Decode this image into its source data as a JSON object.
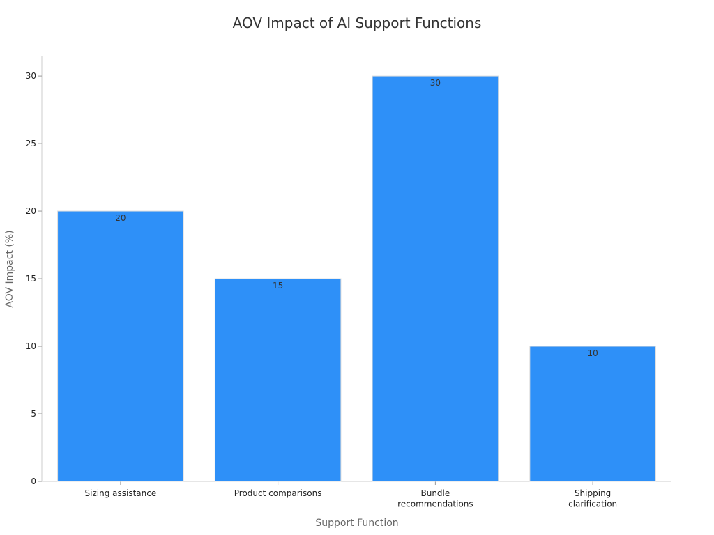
{
  "chart_data": {
    "type": "bar",
    "title": "AOV Impact of AI Support Functions",
    "x_label": "Support Function",
    "y_label": "AOV Impact (%)",
    "categories": [
      "Sizing assistance",
      "Product comparisons",
      "Bundle\nrecommendations",
      "Shipping\nclarification"
    ],
    "values": [
      20,
      15,
      30,
      10
    ],
    "color": "#2e90f8",
    "ylim": [
      0,
      31.5
    ],
    "yticks": [
      0,
      5,
      10,
      15,
      20,
      25,
      30
    ],
    "grid": false
  }
}
